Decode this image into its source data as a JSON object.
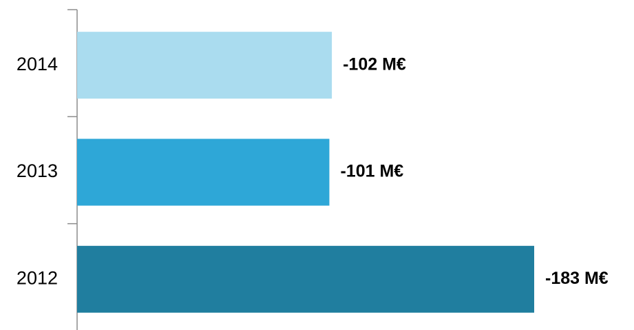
{
  "chart_data": {
    "type": "bar",
    "orientation": "horizontal",
    "categories": [
      "2014",
      "2013",
      "2012"
    ],
    "values": [
      -102,
      -101,
      -183
    ],
    "data_labels": [
      "-102 M€",
      "-101 M€",
      "-183 M€"
    ],
    "colors": [
      "#aadcef",
      "#2ea7d7",
      "#207e9f"
    ],
    "title": "",
    "xlabel": "",
    "ylabel": "",
    "xlim": [
      0,
      -200
    ],
    "grid": false,
    "legend": "none"
  }
}
